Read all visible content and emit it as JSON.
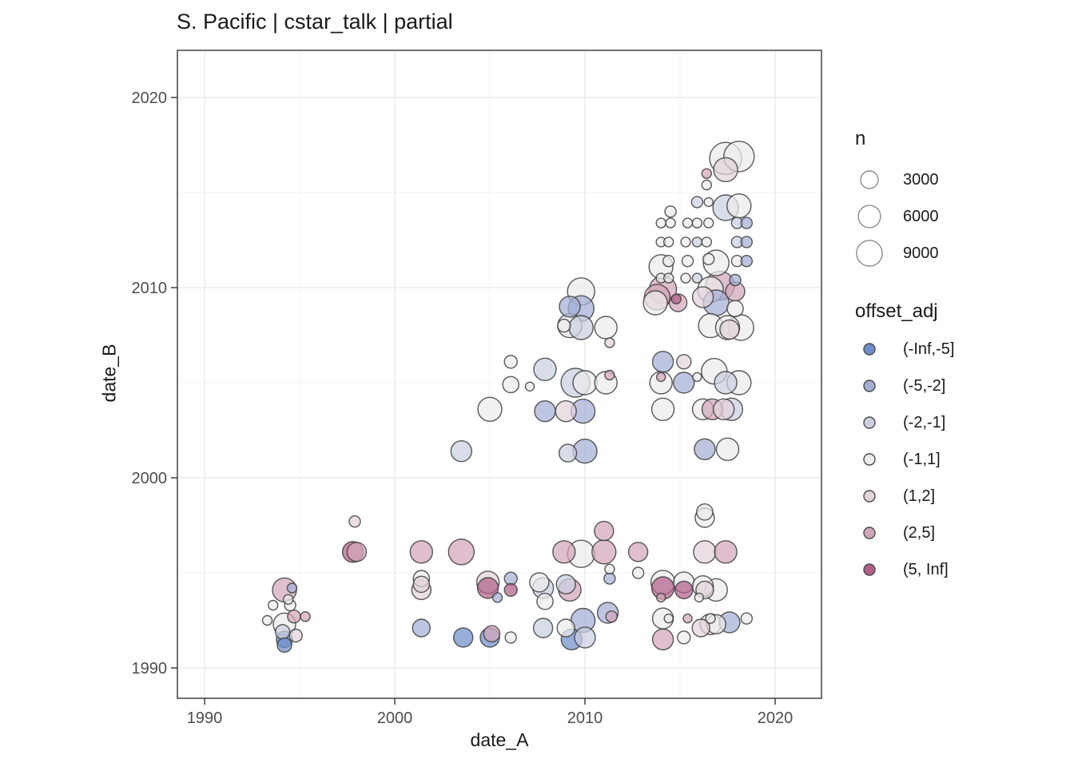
{
  "title": "S. Pacific | cstar_talk | partial",
  "axes": {
    "x_label": "date_A",
    "y_label": "date_B",
    "x_major_ticks": [
      1990,
      2000,
      2010,
      2020
    ],
    "y_major_ticks": [
      1990,
      2000,
      2010,
      2020
    ],
    "x_minor_ticks": [
      1995,
      2005,
      2015
    ],
    "y_minor_ticks": [
      1995,
      2005,
      2015
    ],
    "x_range": [
      1988.6,
      2022.6
    ],
    "y_range": [
      1988.4,
      2022.5
    ]
  },
  "legend": {
    "size_title": "n",
    "size_items": [
      3000,
      6000,
      9000
    ],
    "color_title": "offset_adj",
    "color_items": [
      {
        "label": "(-Inf,-5]",
        "color": "#6e8fc9"
      },
      {
        "label": "(-5,-2]",
        "color": "#a4afd6"
      },
      {
        "label": "(-2,-1]",
        "color": "#cbcfe0"
      },
      {
        "label": "(-1,1]",
        "color": "#ececec"
      },
      {
        "label": "(1,2]",
        "color": "#e2d2da"
      },
      {
        "label": "(2,5]",
        "color": "#d2a6ba"
      },
      {
        "label": "(5, Inf]",
        "color": "#b05f88"
      }
    ]
  },
  "chart_data": {
    "type": "scatter",
    "title": "S. Pacific | cstar_talk | partial",
    "xlabel": "date_A",
    "ylabel": "date_B",
    "xlim": [
      1988.6,
      2022.6
    ],
    "ylim": [
      1988.4,
      2022.5
    ],
    "grid": true,
    "legend_position": "right",
    "size_variable": "n",
    "size_breaks": [
      3000,
      6000,
      9000
    ],
    "color_variable": "offset_adj",
    "color_bins": [
      "(-Inf,-5]",
      "(-5,-2]",
      "(-2,-1]",
      "(-1,1]",
      "(1,2]",
      "(2,5]",
      "(5, Inf]"
    ],
    "bin_colors": [
      "#6e8fc9",
      "#a4afd6",
      "#cbcfe0",
      "#ececec",
      "#e2d2da",
      "#d2a6ba",
      "#b05f88"
    ],
    "points_format": [
      "date_A",
      "date_B",
      "n",
      "bin_index"
    ],
    "points": [
      [
        1994.2,
        1994.1,
        7500,
        5
      ],
      [
        1994.6,
        1994.2,
        200,
        1
      ],
      [
        1994.4,
        1993.6,
        200,
        3
      ],
      [
        1994.5,
        1993.3,
        500,
        3
      ],
      [
        1993.6,
        1993.3,
        200,
        3
      ],
      [
        1994.7,
        1992.7,
        900,
        5
      ],
      [
        1995.3,
        1992.7,
        200,
        5
      ],
      [
        1993.3,
        1992.5,
        200,
        3
      ],
      [
        1994.2,
        1992.3,
        6100,
        3
      ],
      [
        1994.1,
        1991.9,
        1500,
        2
      ],
      [
        1994.2,
        1991.5,
        2200,
        0
      ],
      [
        1994.2,
        1991.2,
        1500,
        0
      ],
      [
        1994.8,
        1991.7,
        900,
        4
      ],
      [
        1997.9,
        1997.7,
        500,
        4
      ],
      [
        1997.8,
        1996.1,
        5000,
        6
      ],
      [
        1998.0,
        1996.1,
        3900,
        5
      ],
      [
        2001.4,
        1996.1,
        6100,
        5
      ],
      [
        2001.4,
        1994.7,
        2200,
        3
      ],
      [
        2001.4,
        1994.4,
        2200,
        4
      ],
      [
        2001.4,
        1994.1,
        3900,
        4
      ],
      [
        2001.4,
        1992.1,
        3000,
        1
      ],
      [
        2003.5,
        1996.1,
        8900,
        5
      ],
      [
        2003.5,
        2001.4,
        5000,
        2
      ],
      [
        2003.6,
        1991.6,
        3900,
        0
      ],
      [
        2005.0,
        2003.6,
        7500,
        3
      ],
      [
        2004.9,
        1994.5,
        6100,
        4
      ],
      [
        2004.9,
        1994.2,
        5000,
        6
      ],
      [
        2005.4,
        1993.7,
        200,
        1
      ],
      [
        2006.1,
        1994.7,
        900,
        1
      ],
      [
        2006.1,
        1994.1,
        900,
        6
      ],
      [
        2005.0,
        1991.6,
        3900,
        0
      ],
      [
        2005.1,
        1991.8,
        2200,
        5
      ],
      [
        2006.1,
        1991.6,
        500,
        3
      ],
      [
        2006.1,
        2006.1,
        900,
        3
      ],
      [
        2006.1,
        2004.9,
        2200,
        3
      ],
      [
        2007.1,
        2004.8,
        100,
        3
      ],
      [
        2007.9,
        2005.7,
        6100,
        2
      ],
      [
        2009.5,
        2005.0,
        12200,
        2
      ],
      [
        2010.0,
        2005.0,
        7500,
        3
      ],
      [
        2011.1,
        2005.0,
        6100,
        3
      ],
      [
        2011.3,
        2005.4,
        200,
        5
      ],
      [
        2007.9,
        2003.5,
        5000,
        1
      ],
      [
        2009.0,
        2003.5,
        5000,
        4
      ],
      [
        2009.9,
        2003.5,
        7500,
        1
      ],
      [
        2009.1,
        2001.3,
        3000,
        2
      ],
      [
        2010.0,
        2001.4,
        7500,
        1
      ],
      [
        2009.8,
        2009.8,
        10500,
        3
      ],
      [
        2009.2,
        2009.0,
        5000,
        1
      ],
      [
        2009.8,
        2008.9,
        8900,
        1
      ],
      [
        2008.9,
        2008.0,
        900,
        3
      ],
      [
        2009.2,
        2008.0,
        7500,
        3
      ],
      [
        2009.8,
        2007.9,
        7500,
        2
      ],
      [
        2011.1,
        2007.9,
        6100,
        3
      ],
      [
        2011.3,
        2007.1,
        200,
        4
      ],
      [
        2007.8,
        1994.2,
        5000,
        2
      ],
      [
        2007.6,
        1994.5,
        3900,
        3
      ],
      [
        2007.9,
        1993.5,
        2200,
        3
      ],
      [
        2009.2,
        1994.1,
        6100,
        5
      ],
      [
        2009.0,
        1994.4,
        3900,
        2
      ],
      [
        2008.9,
        1996.1,
        6100,
        5
      ],
      [
        2009.8,
        1996.0,
        10500,
        3
      ],
      [
        2011.0,
        1997.2,
        3900,
        5
      ],
      [
        2011.0,
        1996.1,
        7500,
        5
      ],
      [
        2011.3,
        1995.2,
        200,
        3
      ],
      [
        2011.3,
        1994.7,
        500,
        1
      ],
      [
        2007.8,
        1992.1,
        3900,
        2
      ],
      [
        2009.0,
        1992.1,
        3000,
        3
      ],
      [
        2009.3,
        1991.5,
        5000,
        0
      ],
      [
        2010.0,
        1991.6,
        5000,
        2
      ],
      [
        2009.9,
        1992.5,
        7500,
        1
      ],
      [
        2011.2,
        1992.9,
        5000,
        1
      ],
      [
        2011.4,
        1992.7,
        500,
        5
      ],
      [
        2012.8,
        1996.1,
        3900,
        5
      ],
      [
        2012.8,
        1995.0,
        500,
        3
      ],
      [
        2017.4,
        2016.8,
        16000,
        3
      ],
      [
        2018.1,
        2016.9,
        14000,
        3
      ],
      [
        2017.4,
        2016.2,
        7500,
        4
      ],
      [
        2016.4,
        2016.0,
        200,
        5
      ],
      [
        2016.4,
        2015.4,
        200,
        3
      ],
      [
        2015.9,
        2014.5,
        500,
        2
      ],
      [
        2016.5,
        2014.5,
        100,
        3
      ],
      [
        2017.4,
        2014.2,
        8900,
        2
      ],
      [
        2018.1,
        2014.3,
        7500,
        3
      ],
      [
        2014.5,
        2014.0,
        500,
        3
      ],
      [
        2014.0,
        2013.4,
        200,
        3
      ],
      [
        2014.5,
        2013.4,
        200,
        3
      ],
      [
        2015.4,
        2013.4,
        200,
        3
      ],
      [
        2015.9,
        2013.4,
        200,
        3
      ],
      [
        2016.5,
        2013.4,
        200,
        3
      ],
      [
        2018.0,
        2013.4,
        500,
        2
      ],
      [
        2018.5,
        2013.4,
        500,
        1
      ],
      [
        2014.0,
        2012.4,
        200,
        3
      ],
      [
        2014.4,
        2012.4,
        200,
        3
      ],
      [
        2015.3,
        2012.4,
        200,
        3
      ],
      [
        2015.9,
        2012.4,
        200,
        2
      ],
      [
        2016.4,
        2012.4,
        200,
        3
      ],
      [
        2018.0,
        2012.4,
        500,
        2
      ],
      [
        2018.5,
        2012.4,
        500,
        1
      ],
      [
        2014.0,
        2011.1,
        7500,
        3
      ],
      [
        2014.4,
        2011.4,
        500,
        3
      ],
      [
        2015.4,
        2011.4,
        500,
        3
      ],
      [
        2016.5,
        2011.5,
        500,
        3
      ],
      [
        2016.9,
        2011.3,
        8900,
        3
      ],
      [
        2018.0,
        2011.4,
        500,
        3
      ],
      [
        2018.5,
        2011.4,
        500,
        1
      ],
      [
        2014.0,
        2010.5,
        200,
        3
      ],
      [
        2014.4,
        2010.5,
        200,
        3
      ],
      [
        2015.3,
        2010.5,
        200,
        3
      ],
      [
        2015.9,
        2010.5,
        200,
        2
      ],
      [
        2017.9,
        2010.4,
        500,
        1
      ],
      [
        2013.8,
        2009.5,
        8900,
        5
      ],
      [
        2014.1,
        2009.9,
        10500,
        5
      ],
      [
        2014.9,
        2009.2,
        3000,
        5
      ],
      [
        2014.8,
        2009.4,
        200,
        6
      ],
      [
        2017.1,
        2010.1,
        12200,
        5
      ],
      [
        2016.6,
        2009.9,
        8900,
        3
      ],
      [
        2016.2,
        2009.5,
        5000,
        4
      ],
      [
        2016.9,
        2009.2,
        8900,
        1
      ],
      [
        2017.9,
        2009.8,
        3900,
        5
      ],
      [
        2017.9,
        2008.9,
        2200,
        3
      ],
      [
        2013.7,
        2009.2,
        7500,
        3
      ],
      [
        2016.6,
        2008.0,
        7500,
        3
      ],
      [
        2017.5,
        2007.9,
        7500,
        3
      ],
      [
        2017.6,
        2007.8,
        3900,
        4
      ],
      [
        2018.2,
        2007.9,
        8900,
        3
      ],
      [
        2014.1,
        2006.1,
        5000,
        1
      ],
      [
        2015.2,
        2006.1,
        1500,
        4
      ],
      [
        2014.0,
        2005.0,
        6100,
        3
      ],
      [
        2014.0,
        2005.3,
        100,
        5
      ],
      [
        2015.2,
        2005.0,
        5000,
        1
      ],
      [
        2015.9,
        2005.3,
        100,
        3
      ],
      [
        2016.8,
        2005.6,
        8900,
        3
      ],
      [
        2017.4,
        2005.0,
        6100,
        2
      ],
      [
        2018.1,
        2005.0,
        7500,
        3
      ],
      [
        2014.1,
        2003.6,
        6100,
        3
      ],
      [
        2016.2,
        2003.6,
        5000,
        3
      ],
      [
        2016.7,
        2003.6,
        5000,
        5
      ],
      [
        2017.3,
        2003.6,
        5000,
        4
      ],
      [
        2017.7,
        2003.6,
        6100,
        2
      ],
      [
        2016.3,
        2001.5,
        5000,
        1
      ],
      [
        2017.5,
        2001.5,
        6100,
        3
      ],
      [
        2016.3,
        1997.9,
        3900,
        3
      ],
      [
        2016.3,
        1998.2,
        2200,
        3
      ],
      [
        2016.3,
        1996.1,
        6100,
        4
      ],
      [
        2017.4,
        1996.1,
        6100,
        5
      ],
      [
        2014.1,
        1994.5,
        7500,
        3
      ],
      [
        2014.1,
        1994.2,
        6100,
        6
      ],
      [
        2015.2,
        1994.5,
        5000,
        3
      ],
      [
        2015.2,
        1994.1,
        3000,
        6
      ],
      [
        2016.2,
        1994.3,
        5000,
        3
      ],
      [
        2016.3,
        1994.1,
        3000,
        4
      ],
      [
        2016.9,
        1994.1,
        6100,
        3
      ],
      [
        2016.0,
        1993.7,
        100,
        3
      ],
      [
        2014.0,
        1993.7,
        100,
        5
      ],
      [
        2014.1,
        1992.6,
        5000,
        3
      ],
      [
        2014.4,
        1992.6,
        100,
        3
      ],
      [
        2015.4,
        1992.6,
        100,
        5
      ],
      [
        2016.6,
        1992.6,
        200,
        3
      ],
      [
        2016.6,
        1992.3,
        5000,
        3
      ],
      [
        2016.9,
        1992.3,
        3900,
        3
      ],
      [
        2017.6,
        1992.4,
        5000,
        1
      ],
      [
        2018.5,
        1992.6,
        500,
        3
      ],
      [
        2014.1,
        1991.5,
        5000,
        5
      ],
      [
        2015.2,
        1991.6,
        900,
        3
      ],
      [
        2016.1,
        1992.1,
        3000,
        4
      ]
    ]
  }
}
